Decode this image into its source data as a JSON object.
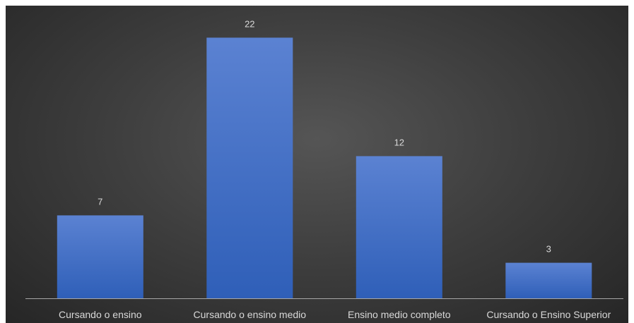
{
  "chart_data": {
    "type": "bar",
    "title": "",
    "xlabel": "",
    "ylabel": "",
    "categories": [
      "Cursando o ensino",
      "Cursando o ensino medio",
      "Ensino medio completo",
      "Cursando o Ensino Superior"
    ],
    "values": [
      7,
      22,
      12,
      3
    ],
    "data_labels": [
      "7",
      "22",
      "12",
      "3"
    ],
    "ylim": [
      0,
      25
    ],
    "grid": false,
    "legend": "none",
    "colors": {
      "bar_top": "#5b82d2",
      "bar_bottom": "#2f5fb8",
      "background_center": "#555555",
      "background_edge": "#262626",
      "text": "#d9d9d9",
      "axis": "#a6a6a6"
    }
  }
}
